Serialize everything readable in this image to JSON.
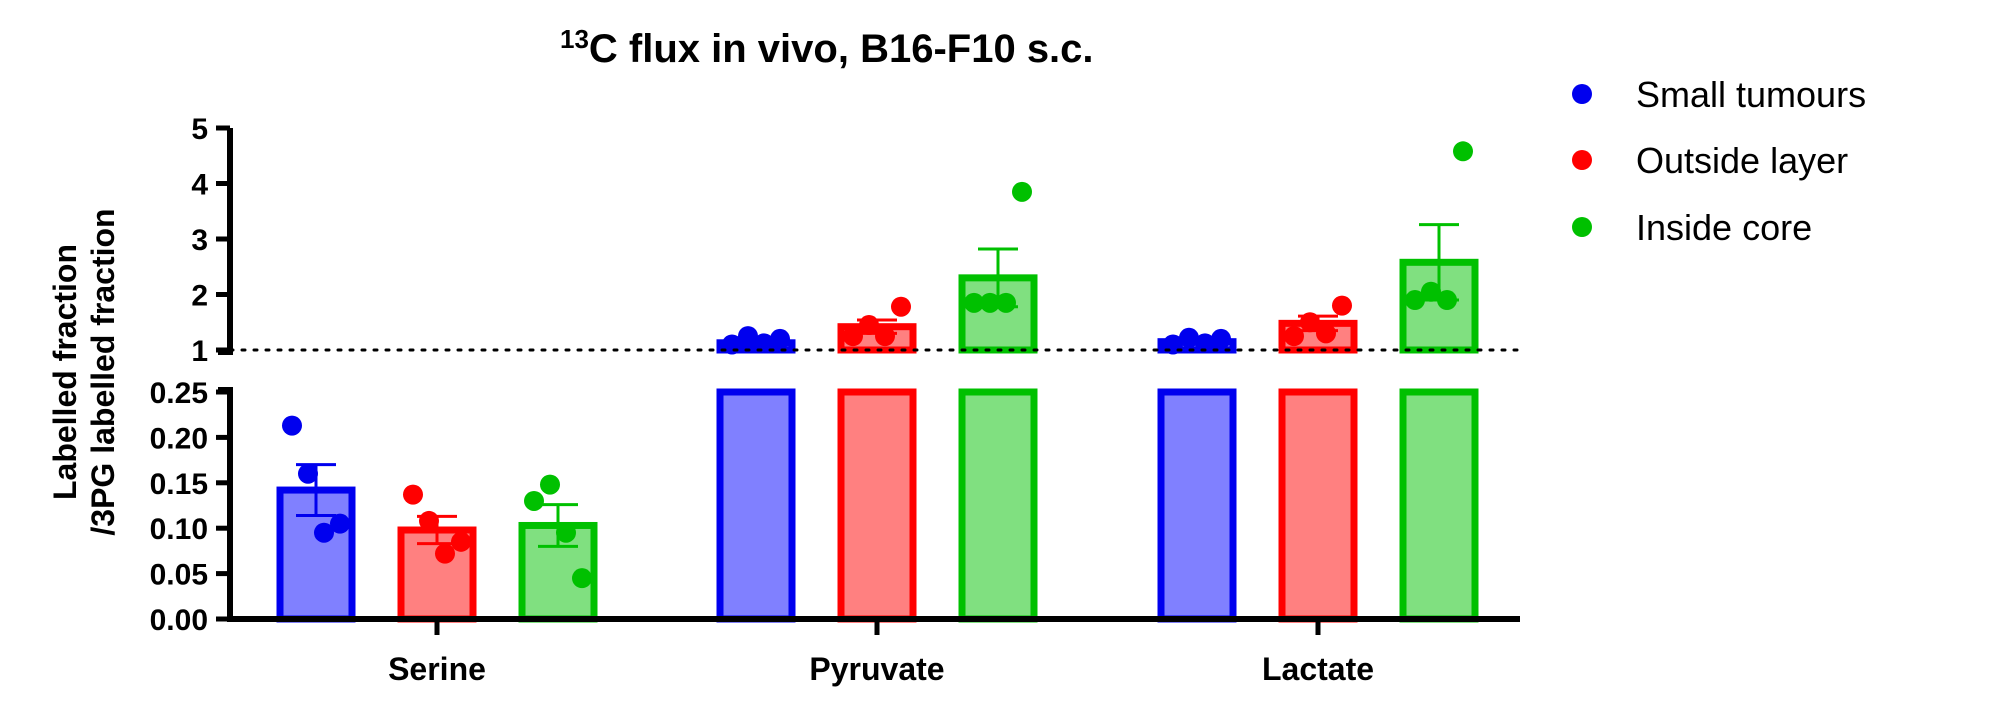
{
  "chart_data": {
    "type": "bar",
    "title_sup": "13",
    "title_main": "C flux in vivo, B16-F10 s.c.",
    "ylabel_line1": "Labelled fraction",
    "ylabel_line2": "/3PG labelled fraction",
    "categories": [
      "Serine",
      "Pyruvate",
      "Lactate"
    ],
    "y_axis_broken": true,
    "lower_segment": {
      "ylim": [
        0,
        0.25
      ],
      "ticks": [
        "0.00",
        "0.05",
        "0.10",
        "0.15",
        "0.20",
        "0.25"
      ]
    },
    "upper_segment": {
      "ylim": [
        1,
        5
      ],
      "ticks": [
        "1",
        "2",
        "3",
        "4",
        "5"
      ]
    },
    "reference_line": {
      "y": 1,
      "style": "dotted"
    },
    "error_bars": "SEM",
    "legend_position": "top-right",
    "series": [
      {
        "name": "Small tumours",
        "color": "#0000ee",
        "fill": "#8080ff",
        "values": [
          0.142,
          1.13,
          1.15
        ],
        "errors": [
          0.028,
          0.04,
          0.04
        ],
        "points": [
          [
            0.213,
            0.16,
            0.095,
            0.105
          ],
          [
            1.1,
            1.25,
            1.12,
            1.2
          ],
          [
            1.1,
            1.22,
            1.12,
            1.2
          ]
        ]
      },
      {
        "name": "Outside layer",
        "color": "#ff0000",
        "fill": "#ff8080",
        "values": [
          0.098,
          1.42,
          1.48
        ],
        "errors": [
          0.015,
          0.12,
          0.13
        ],
        "points": [
          [
            0.137,
            0.108,
            0.072,
            0.085
          ],
          [
            1.25,
            1.45,
            1.25,
            1.78
          ],
          [
            1.25,
            1.5,
            1.3,
            1.8
          ]
        ]
      },
      {
        "name": "Inside core",
        "color": "#00c000",
        "fill": "#80e080",
        "values": [
          0.103,
          2.3,
          2.58
        ],
        "errors": [
          0.023,
          0.52,
          0.68
        ],
        "points": [
          [
            0.13,
            0.148,
            0.095,
            0.045
          ],
          [
            1.85,
            1.85,
            1.85,
            3.85
          ],
          [
            1.9,
            2.05,
            1.9,
            4.58
          ]
        ]
      }
    ]
  }
}
